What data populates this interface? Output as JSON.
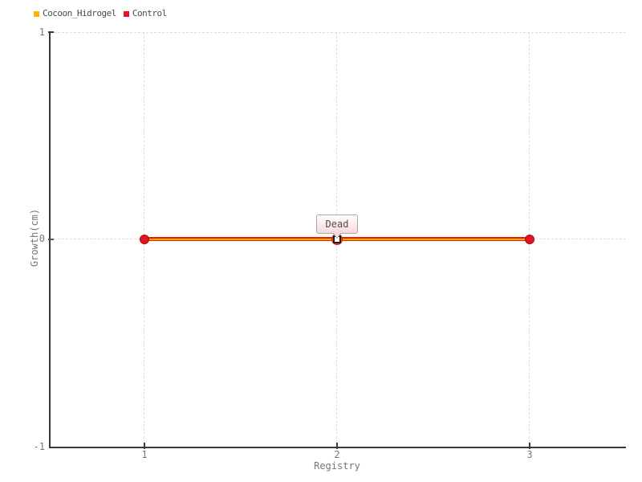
{
  "chart_data": {
    "type": "line",
    "x": [
      1,
      2,
      3
    ],
    "series": [
      {
        "name": "Cocoon_Hidrogel",
        "color": "#FFB300",
        "line_color": "#FFAA00",
        "values": [
          0,
          0,
          0
        ]
      },
      {
        "name": "Control",
        "color": "#EE1124",
        "line_color": "#DD2500",
        "marker_color": "#E81123",
        "values": [
          0,
          0,
          0
        ]
      }
    ],
    "xlabel": "Registry",
    "ylabel": "Growth(cm)",
    "ylim": [
      -1,
      1
    ],
    "xtick_labels": [
      "1",
      "2",
      "3"
    ],
    "ytick_labels": [
      "1",
      "0",
      "-1"
    ],
    "grid": true,
    "grid_style": "dashed",
    "grid_color": "#dddddd",
    "axis_color": "#3a3a3a",
    "legend_position": "top-left",
    "annotation": {
      "text": "Dead",
      "x": 2,
      "y": 0,
      "tooltip_bg": "#fce9e9",
      "tooltip_border": "#a9a9a9"
    }
  }
}
